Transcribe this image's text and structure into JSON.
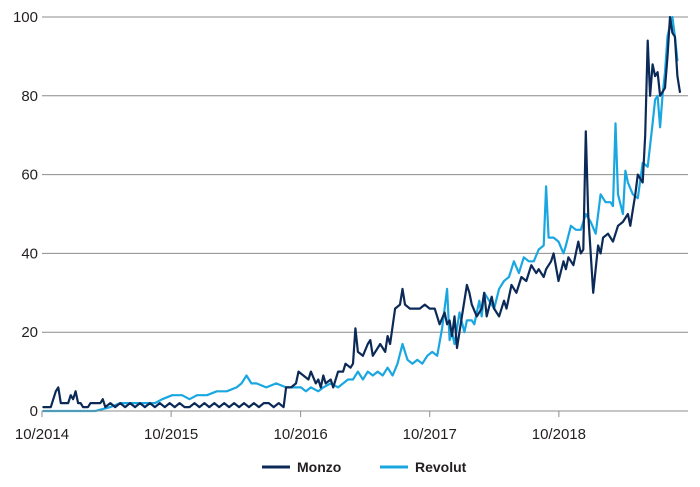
{
  "chart_data": {
    "type": "line",
    "title": "",
    "xlabel": "",
    "ylabel": "",
    "ylim": [
      0,
      100
    ],
    "xlim": [
      "2014-10",
      "2019-10"
    ],
    "grid": "horizontal",
    "legend_position": "bottom",
    "x_tick_labels": [
      "10/2014",
      "10/2015",
      "10/2016",
      "10/2017",
      "10/2018"
    ],
    "y_tick_labels": [
      "0",
      "20",
      "40",
      "60",
      "80",
      "100"
    ],
    "series": [
      {
        "name": "Monzo",
        "color": "#0c2a58",
        "points": [
          [
            "2014-10-05",
            1
          ],
          [
            "2014-10-26",
            1
          ],
          [
            "2014-11-09",
            5
          ],
          [
            "2014-11-16",
            6
          ],
          [
            "2014-11-23",
            2
          ],
          [
            "2014-12-14",
            2
          ],
          [
            "2014-12-21",
            4
          ],
          [
            "2014-12-28",
            3
          ],
          [
            "2015-01-04",
            5
          ],
          [
            "2015-01-11",
            2
          ],
          [
            "2015-01-18",
            2
          ],
          [
            "2015-01-25",
            1
          ],
          [
            "2015-02-08",
            1
          ],
          [
            "2015-02-15",
            2
          ],
          [
            "2015-03-01",
            2
          ],
          [
            "2015-03-15",
            2
          ],
          [
            "2015-03-22",
            3
          ],
          [
            "2015-03-29",
            1
          ],
          [
            "2015-04-12",
            2
          ],
          [
            "2015-04-26",
            1
          ],
          [
            "2015-05-10",
            2
          ],
          [
            "2015-05-24",
            1
          ],
          [
            "2015-06-07",
            2
          ],
          [
            "2015-06-21",
            1
          ],
          [
            "2015-07-05",
            2
          ],
          [
            "2015-07-19",
            1
          ],
          [
            "2015-08-02",
            2
          ],
          [
            "2015-08-16",
            1
          ],
          [
            "2015-08-30",
            2
          ],
          [
            "2015-09-13",
            1
          ],
          [
            "2015-09-27",
            2
          ],
          [
            "2015-10-11",
            1
          ],
          [
            "2015-10-25",
            2
          ],
          [
            "2015-11-08",
            1
          ],
          [
            "2015-11-22",
            1
          ],
          [
            "2015-12-06",
            2
          ],
          [
            "2015-12-20",
            1
          ],
          [
            "2016-01-03",
            2
          ],
          [
            "2016-01-17",
            1
          ],
          [
            "2016-01-31",
            2
          ],
          [
            "2016-02-14",
            1
          ],
          [
            "2016-02-28",
            2
          ],
          [
            "2016-03-13",
            1
          ],
          [
            "2016-03-27",
            2
          ],
          [
            "2016-04-10",
            1
          ],
          [
            "2016-04-24",
            2
          ],
          [
            "2016-05-08",
            1
          ],
          [
            "2016-05-22",
            2
          ],
          [
            "2016-06-05",
            1
          ],
          [
            "2016-06-19",
            2
          ],
          [
            "2016-07-03",
            2
          ],
          [
            "2016-07-17",
            1
          ],
          [
            "2016-07-31",
            2
          ],
          [
            "2016-08-14",
            1
          ],
          [
            "2016-08-21",
            6
          ],
          [
            "2016-09-04",
            6
          ],
          [
            "2016-09-18",
            7
          ],
          [
            "2016-09-25",
            10
          ],
          [
            "2016-10-09",
            9
          ],
          [
            "2016-10-23",
            8
          ],
          [
            "2016-10-30",
            10
          ],
          [
            "2016-11-13",
            7
          ],
          [
            "2016-11-20",
            8
          ],
          [
            "2016-11-27",
            6
          ],
          [
            "2016-12-04",
            9
          ],
          [
            "2016-12-11",
            7
          ],
          [
            "2016-12-25",
            8
          ],
          [
            "2017-01-01",
            6
          ],
          [
            "2017-01-15",
            10
          ],
          [
            "2017-01-29",
            10
          ],
          [
            "2017-02-05",
            12
          ],
          [
            "2017-02-19",
            11
          ],
          [
            "2017-02-26",
            12
          ],
          [
            "2017-03-05",
            21
          ],
          [
            "2017-03-12",
            15
          ],
          [
            "2017-03-26",
            14
          ],
          [
            "2017-04-09",
            17
          ],
          [
            "2017-04-16",
            18
          ],
          [
            "2017-04-23",
            14
          ],
          [
            "2017-05-07",
            16
          ],
          [
            "2017-05-14",
            17
          ],
          [
            "2017-05-28",
            15
          ],
          [
            "2017-06-04",
            19
          ],
          [
            "2017-06-11",
            17
          ],
          [
            "2017-06-25",
            26
          ],
          [
            "2017-07-09",
            27
          ],
          [
            "2017-07-16",
            31
          ],
          [
            "2017-07-23",
            27
          ],
          [
            "2017-08-06",
            26
          ],
          [
            "2017-08-20",
            26
          ],
          [
            "2017-09-03",
            26
          ],
          [
            "2017-09-17",
            27
          ],
          [
            "2017-10-01",
            26
          ],
          [
            "2017-10-15",
            26
          ],
          [
            "2017-10-29",
            22
          ],
          [
            "2017-11-12",
            25
          ],
          [
            "2017-11-19",
            22
          ],
          [
            "2017-11-26",
            23
          ],
          [
            "2017-12-03",
            19
          ],
          [
            "2017-12-10",
            24
          ],
          [
            "2017-12-17",
            16
          ],
          [
            "2017-12-31",
            24
          ],
          [
            "2018-01-07",
            28
          ],
          [
            "2018-01-14",
            32
          ],
          [
            "2018-01-21",
            30
          ],
          [
            "2018-01-28",
            27
          ],
          [
            "2018-02-11",
            24
          ],
          [
            "2018-02-25",
            26
          ],
          [
            "2018-03-04",
            30
          ],
          [
            "2018-03-11",
            24
          ],
          [
            "2018-03-25",
            29
          ],
          [
            "2018-04-01",
            26
          ],
          [
            "2018-04-15",
            24
          ],
          [
            "2018-04-29",
            28
          ],
          [
            "2018-05-06",
            26
          ],
          [
            "2018-05-20",
            32
          ],
          [
            "2018-06-03",
            30
          ],
          [
            "2018-06-17",
            34
          ],
          [
            "2018-07-01",
            33
          ],
          [
            "2018-07-15",
            37
          ],
          [
            "2018-07-29",
            35
          ],
          [
            "2018-08-05",
            36
          ],
          [
            "2018-08-19",
            34
          ],
          [
            "2018-08-26",
            36
          ],
          [
            "2018-09-09",
            38
          ],
          [
            "2018-09-16",
            40
          ],
          [
            "2018-09-30",
            33
          ],
          [
            "2018-10-14",
            38
          ],
          [
            "2018-10-21",
            36
          ],
          [
            "2018-10-28",
            39
          ],
          [
            "2018-11-11",
            37
          ],
          [
            "2018-11-25",
            43
          ],
          [
            "2018-12-02",
            40
          ],
          [
            "2018-12-09",
            41
          ],
          [
            "2018-12-16",
            71
          ],
          [
            "2018-12-23",
            50
          ],
          [
            "2019-01-06",
            30
          ],
          [
            "2019-01-20",
            42
          ],
          [
            "2019-01-27",
            40
          ],
          [
            "2019-02-03",
            44
          ],
          [
            "2019-02-17",
            45
          ],
          [
            "2019-03-03",
            43
          ],
          [
            "2019-03-17",
            47
          ],
          [
            "2019-03-31",
            48
          ],
          [
            "2019-04-14",
            50
          ],
          [
            "2019-04-21",
            47
          ],
          [
            "2019-05-05",
            55
          ],
          [
            "2019-05-12",
            60
          ],
          [
            "2019-05-26",
            58
          ],
          [
            "2019-06-02",
            70
          ],
          [
            "2019-06-09",
            94
          ],
          [
            "2019-06-16",
            80
          ],
          [
            "2019-06-23",
            88
          ],
          [
            "2019-06-30",
            85
          ],
          [
            "2019-07-07",
            86
          ],
          [
            "2019-07-14",
            80
          ],
          [
            "2019-07-28",
            82
          ],
          [
            "2019-08-04",
            90
          ],
          [
            "2019-08-11",
            100
          ],
          [
            "2019-08-18",
            96
          ],
          [
            "2019-08-25",
            95
          ],
          [
            "2019-09-01",
            85
          ],
          [
            "2019-09-08",
            81
          ]
        ]
      },
      {
        "name": "Revolut",
        "color": "#1aa7e1",
        "points": [
          [
            "2014-10-05",
            0
          ],
          [
            "2015-03-01",
            0
          ],
          [
            "2015-04-12",
            1
          ],
          [
            "2015-05-10",
            2
          ],
          [
            "2015-06-21",
            2
          ],
          [
            "2015-07-12",
            2
          ],
          [
            "2015-08-16",
            2
          ],
          [
            "2015-09-06",
            3
          ],
          [
            "2015-10-04",
            4
          ],
          [
            "2015-11-01",
            4
          ],
          [
            "2015-11-22",
            3
          ],
          [
            "2015-12-13",
            4
          ],
          [
            "2016-01-10",
            4
          ],
          [
            "2016-02-07",
            5
          ],
          [
            "2016-03-06",
            5
          ],
          [
            "2016-04-03",
            6
          ],
          [
            "2016-04-17",
            7
          ],
          [
            "2016-05-01",
            9
          ],
          [
            "2016-05-15",
            7
          ],
          [
            "2016-05-29",
            7
          ],
          [
            "2016-06-26",
            6
          ],
          [
            "2016-07-24",
            7
          ],
          [
            "2016-08-21",
            6
          ],
          [
            "2016-09-11",
            6
          ],
          [
            "2016-10-02",
            6
          ],
          [
            "2016-10-16",
            5
          ],
          [
            "2016-10-30",
            6
          ],
          [
            "2016-11-20",
            5
          ],
          [
            "2016-12-04",
            6
          ],
          [
            "2016-12-25",
            7
          ],
          [
            "2017-01-15",
            6
          ],
          [
            "2017-01-29",
            7
          ],
          [
            "2017-02-12",
            8
          ],
          [
            "2017-02-26",
            8
          ],
          [
            "2017-03-12",
            10
          ],
          [
            "2017-03-26",
            8
          ],
          [
            "2017-04-09",
            10
          ],
          [
            "2017-04-23",
            9
          ],
          [
            "2017-05-07",
            10
          ],
          [
            "2017-05-21",
            9
          ],
          [
            "2017-06-04",
            11
          ],
          [
            "2017-06-18",
            9
          ],
          [
            "2017-07-02",
            12
          ],
          [
            "2017-07-16",
            17
          ],
          [
            "2017-07-30",
            13
          ],
          [
            "2017-08-13",
            12
          ],
          [
            "2017-08-27",
            13
          ],
          [
            "2017-09-10",
            12
          ],
          [
            "2017-09-24",
            14
          ],
          [
            "2017-10-08",
            15
          ],
          [
            "2017-10-22",
            14
          ],
          [
            "2017-11-05",
            21
          ],
          [
            "2017-11-19",
            31
          ],
          [
            "2017-11-26",
            18
          ],
          [
            "2017-12-03",
            20
          ],
          [
            "2017-12-10",
            17
          ],
          [
            "2017-12-24",
            25
          ],
          [
            "2018-01-07",
            20
          ],
          [
            "2018-01-14",
            23
          ],
          [
            "2018-01-28",
            23
          ],
          [
            "2018-02-04",
            22
          ],
          [
            "2018-02-18",
            28
          ],
          [
            "2018-02-25",
            24
          ],
          [
            "2018-03-04",
            30
          ],
          [
            "2018-03-18",
            28
          ],
          [
            "2018-04-01",
            26
          ],
          [
            "2018-04-15",
            31
          ],
          [
            "2018-04-29",
            33
          ],
          [
            "2018-05-13",
            34
          ],
          [
            "2018-05-27",
            38
          ],
          [
            "2018-06-10",
            35
          ],
          [
            "2018-06-24",
            39
          ],
          [
            "2018-07-08",
            38
          ],
          [
            "2018-07-22",
            38
          ],
          [
            "2018-08-05",
            41
          ],
          [
            "2018-08-19",
            42
          ],
          [
            "2018-08-26",
            57
          ],
          [
            "2018-09-02",
            44
          ],
          [
            "2018-09-16",
            44
          ],
          [
            "2018-09-30",
            43
          ],
          [
            "2018-10-14",
            40
          ],
          [
            "2018-10-21",
            42
          ],
          [
            "2018-11-04",
            47
          ],
          [
            "2018-11-18",
            46
          ],
          [
            "2018-12-02",
            46
          ],
          [
            "2018-12-16",
            50
          ],
          [
            "2018-12-30",
            48
          ],
          [
            "2019-01-13",
            45
          ],
          [
            "2019-01-27",
            55
          ],
          [
            "2019-02-10",
            53
          ],
          [
            "2019-02-24",
            53
          ],
          [
            "2019-03-03",
            52
          ],
          [
            "2019-03-10",
            73
          ],
          [
            "2019-03-17",
            55
          ],
          [
            "2019-03-31",
            50
          ],
          [
            "2019-04-07",
            61
          ],
          [
            "2019-04-14",
            58
          ],
          [
            "2019-04-28",
            55
          ],
          [
            "2019-05-12",
            54
          ],
          [
            "2019-05-26",
            63
          ],
          [
            "2019-06-09",
            62
          ],
          [
            "2019-06-23",
            73
          ],
          [
            "2019-06-30",
            79
          ],
          [
            "2019-07-07",
            80
          ],
          [
            "2019-07-14",
            72
          ],
          [
            "2019-07-21",
            80
          ],
          [
            "2019-07-28",
            86
          ],
          [
            "2019-08-04",
            95
          ],
          [
            "2019-08-11",
            98
          ],
          [
            "2019-08-18",
            100
          ],
          [
            "2019-08-25",
            95
          ],
          [
            "2019-09-01",
            89
          ]
        ]
      }
    ]
  }
}
